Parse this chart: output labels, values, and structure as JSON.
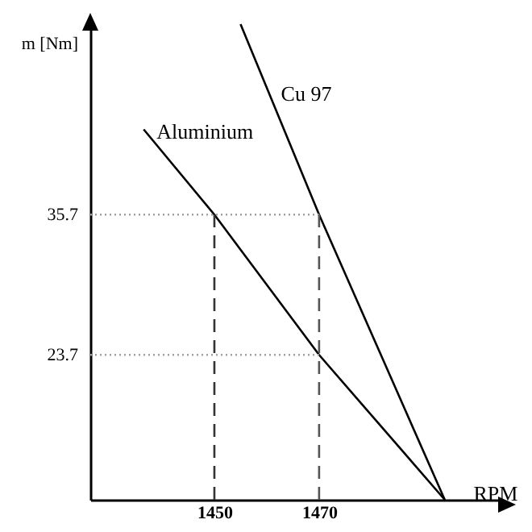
{
  "chart_data": {
    "type": "line",
    "xlabel": "RPM",
    "ylabel": "m [Nm]",
    "xlim": [
      1426.3,
      1504.5
    ],
    "ylim": [
      11.3,
      52
    ],
    "xticks": [
      1450,
      1470
    ],
    "yticks": [
      23.7,
      35.7
    ],
    "grid": false,
    "marker": "none",
    "line_style": "solid",
    "series": [
      {
        "name": "Aluminium",
        "color": "#000000",
        "x": [
          1436.5,
          1450,
          1470,
          1494
        ],
        "values": [
          43,
          35.7,
          23.7,
          11.3
        ]
      },
      {
        "name": "Cu 97",
        "color": "#000000",
        "x": [
          1455,
          1470,
          1494
        ],
        "values": [
          52,
          35.7,
          11.3
        ]
      },
      {
        "color": "#a0a0a0",
        "line_style": "dotted",
        "x": [
          1426.3,
          1470
        ],
        "values": [
          35.7,
          35.7
        ]
      },
      {
        "color": "#a0a0a0",
        "line_style": "dotted",
        "x": [
          1426.3,
          1470
        ],
        "values": [
          23.7,
          23.7
        ]
      },
      {
        "color": "#333333",
        "line_style": "dashed",
        "x": [
          1450,
          1450
        ],
        "values": [
          11.3,
          35.7
        ]
      },
      {
        "color": "#555555",
        "line_style": "dashed",
        "x": [
          1470,
          1470
        ],
        "values": [
          11.3,
          35.7
        ]
      }
    ]
  }
}
